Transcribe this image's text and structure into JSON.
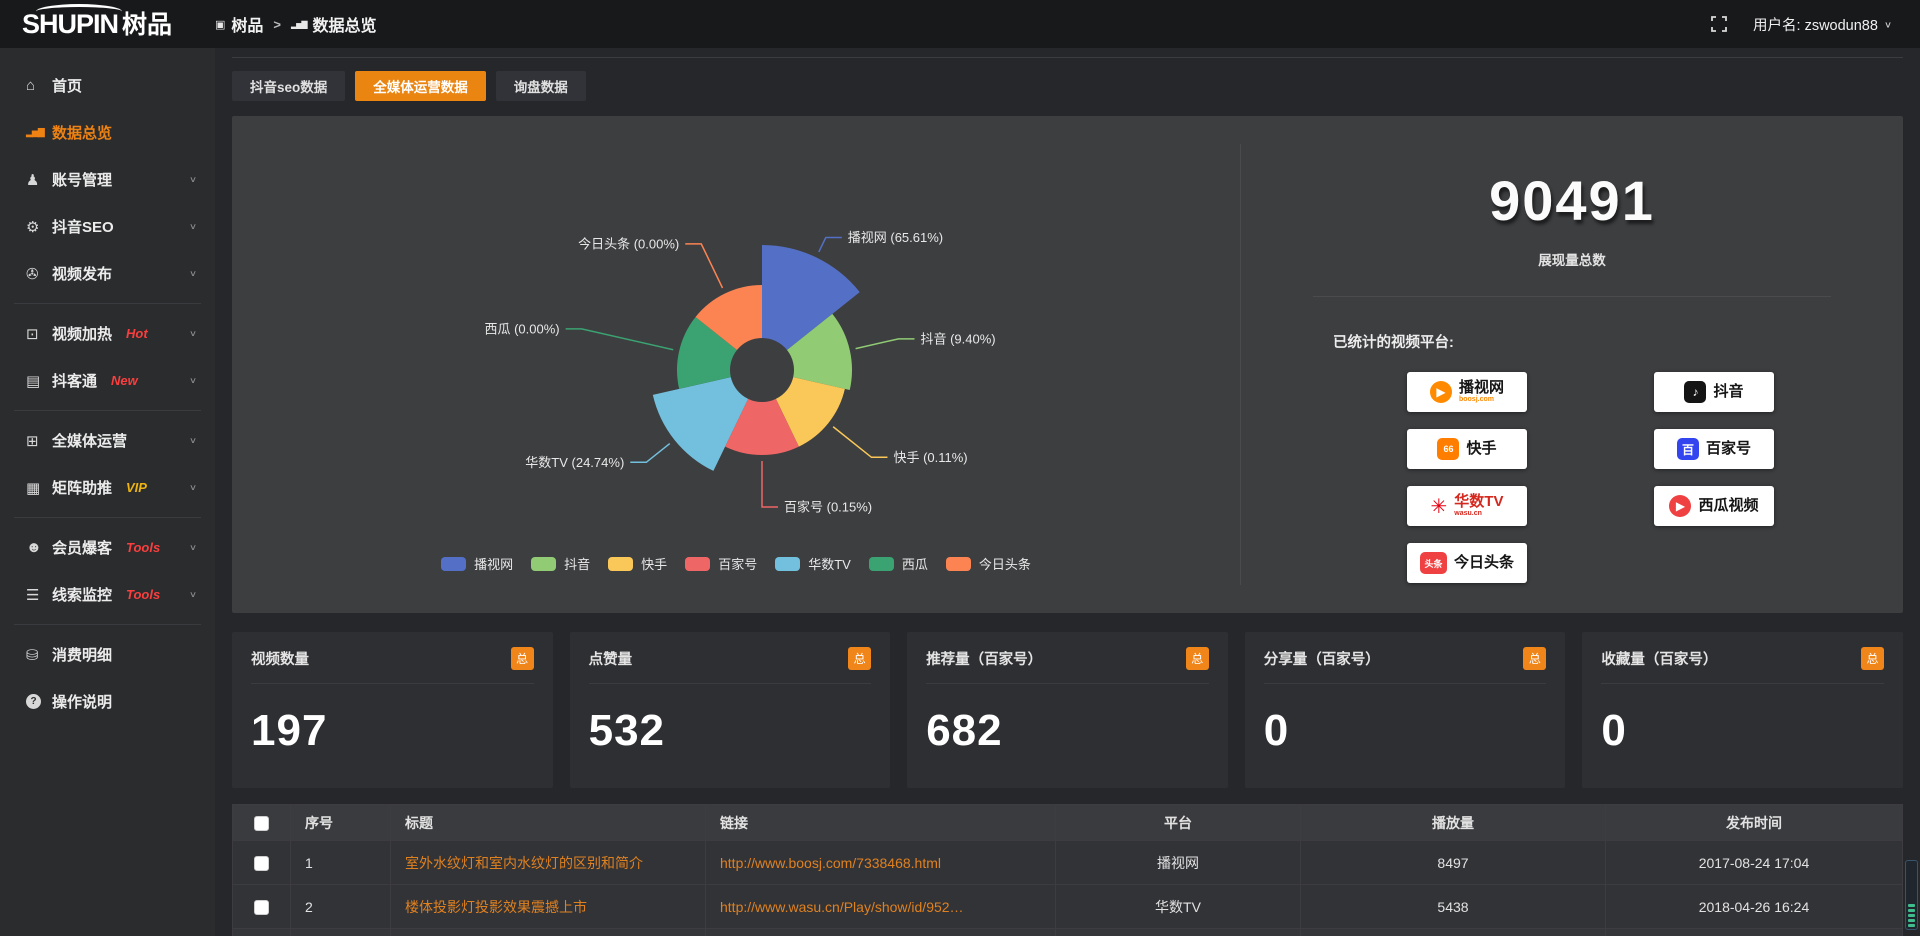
{
  "brand": {
    "latin": "SHUPIN",
    "cjk": "树品"
  },
  "breadcrumb": {
    "items": [
      "树品",
      "数据总览"
    ],
    "separator": ">"
  },
  "topbar": {
    "user": "用户名: zswodun88"
  },
  "sidebar": {
    "items": [
      {
        "label": "首页",
        "icon": "home-icon"
      },
      {
        "label": "数据总览",
        "icon": "bar-chart-icon",
        "active": true
      },
      {
        "label": "账号管理",
        "icon": "user-icon",
        "chevron": true
      },
      {
        "label": "抖音SEO",
        "icon": "gear-icon",
        "chevron": true
      },
      {
        "label": "视频发布",
        "icon": "reel-icon",
        "chevron": true
      },
      {
        "divider": true
      },
      {
        "label": "视频加热",
        "icon": "monitor-dot-icon",
        "badge": "Hot",
        "badge_color": "#fa3e3e",
        "chevron": true
      },
      {
        "label": "抖客通",
        "icon": "chat-icon",
        "badge": "New",
        "badge_color": "#fa3e3e",
        "chevron": true
      },
      {
        "divider": true
      },
      {
        "label": "全媒体运营",
        "icon": "monitor-icon",
        "chevron": true
      },
      {
        "label": "矩阵助推",
        "icon": "grid-icon",
        "badge": "VIP",
        "badge_color": "#edb413",
        "chevron": true
      },
      {
        "divider": true
      },
      {
        "label": "会员爆客",
        "icon": "person-icon",
        "badge": "Tools",
        "badge_color": "#fa3e3e",
        "chevron": true
      },
      {
        "label": "线索监控",
        "icon": "sliders-icon",
        "badge": "Tools",
        "badge_color": "#fa3e3e",
        "chevron": true
      },
      {
        "divider": true
      },
      {
        "label": "消费明细",
        "icon": "coins-icon"
      },
      {
        "label": "操作说明",
        "icon": "help-icon"
      }
    ]
  },
  "tabs": [
    {
      "label": "抖音seo数据",
      "active": false
    },
    {
      "label": "全媒体运营数据",
      "active": true
    },
    {
      "label": "询盘数据",
      "active": false
    }
  ],
  "chart_data": {
    "type": "pie",
    "variant": "nightingale-rose",
    "items": [
      {
        "name": "播视网",
        "pct": "65.61",
        "color": "#5470c6"
      },
      {
        "name": "抖音",
        "pct": "9.40",
        "color": "#91cc75"
      },
      {
        "name": "快手",
        "pct": "0.11",
        "color": "#fac858"
      },
      {
        "name": "百家号",
        "pct": "0.15",
        "color": "#ee6666"
      },
      {
        "name": "华数TV",
        "pct": "24.74",
        "color": "#73c0de"
      },
      {
        "name": "西瓜",
        "pct": "0.00",
        "color": "#3ba272"
      },
      {
        "name": "今日头条",
        "pct": "0.00",
        "color": "#fc8452"
      }
    ],
    "legend_position": "bottom",
    "label_format": "{name} ({pct}%)",
    "total": {
      "value": "90491",
      "label": "展现量总数"
    }
  },
  "platforms": {
    "title": "已统计的视频平台:",
    "items": [
      {
        "id": "boosj",
        "label": "播视网",
        "sub": "boosj.com",
        "icon_bg": "#ff8a00",
        "icon_glyph": "▶",
        "round": true
      },
      {
        "id": "kuaishou",
        "label": "快手",
        "icon_bg": "#ff7e00",
        "icon_glyph": "66"
      },
      {
        "id": "wasu",
        "label": "华数TV",
        "sub": "wasu.cn",
        "icon_glyph": "✳",
        "icon_color": "#e60012",
        "label_color": "#d5281e",
        "sub_color": "#d5281e"
      },
      {
        "id": "toutiao",
        "label": "今日头条",
        "icon_bg": "#f04142",
        "icon_glyph": "头条",
        "wide": true
      },
      {
        "id": "douyin",
        "label": "抖音",
        "icon_bg": "#141414",
        "icon_glyph": "♪"
      },
      {
        "id": "baijiahao",
        "label": "百家号",
        "icon_bg": "#3245ef",
        "icon_glyph": "百"
      },
      {
        "id": "xigua",
        "label": "西瓜视频",
        "icon_bg": "#f04142",
        "icon_glyph": "▶",
        "round": true
      }
    ]
  },
  "stat_cards": [
    {
      "title": "视频数量",
      "badge": "总",
      "value": "197"
    },
    {
      "title": "点赞量",
      "badge": "总",
      "value": "532"
    },
    {
      "title": "推荐量（百家号）",
      "badge": "总",
      "value": "682"
    },
    {
      "title": "分享量（百家号）",
      "badge": "总",
      "value": "0"
    },
    {
      "title": "收藏量（百家号）",
      "badge": "总",
      "value": "0"
    }
  ],
  "table": {
    "columns": [
      "序号",
      "标题",
      "链接",
      "平台",
      "播放量",
      "发布时间"
    ],
    "rows": [
      {
        "no": "1",
        "title": "室外水纹灯和室内水纹灯的区别和简介",
        "link": "http://www.boosj.com/7338468.html",
        "platform": "播视网",
        "plays": "8497",
        "time": "2017-08-24 17:04"
      },
      {
        "no": "2",
        "title": "楼体投影灯投影效果震撼上市",
        "link": "http://www.wasu.cn/Play/show/id/952…",
        "platform": "华数TV",
        "plays": "5438",
        "time": "2018-04-26 16:24"
      }
    ]
  },
  "accent_color": "#ea8512"
}
